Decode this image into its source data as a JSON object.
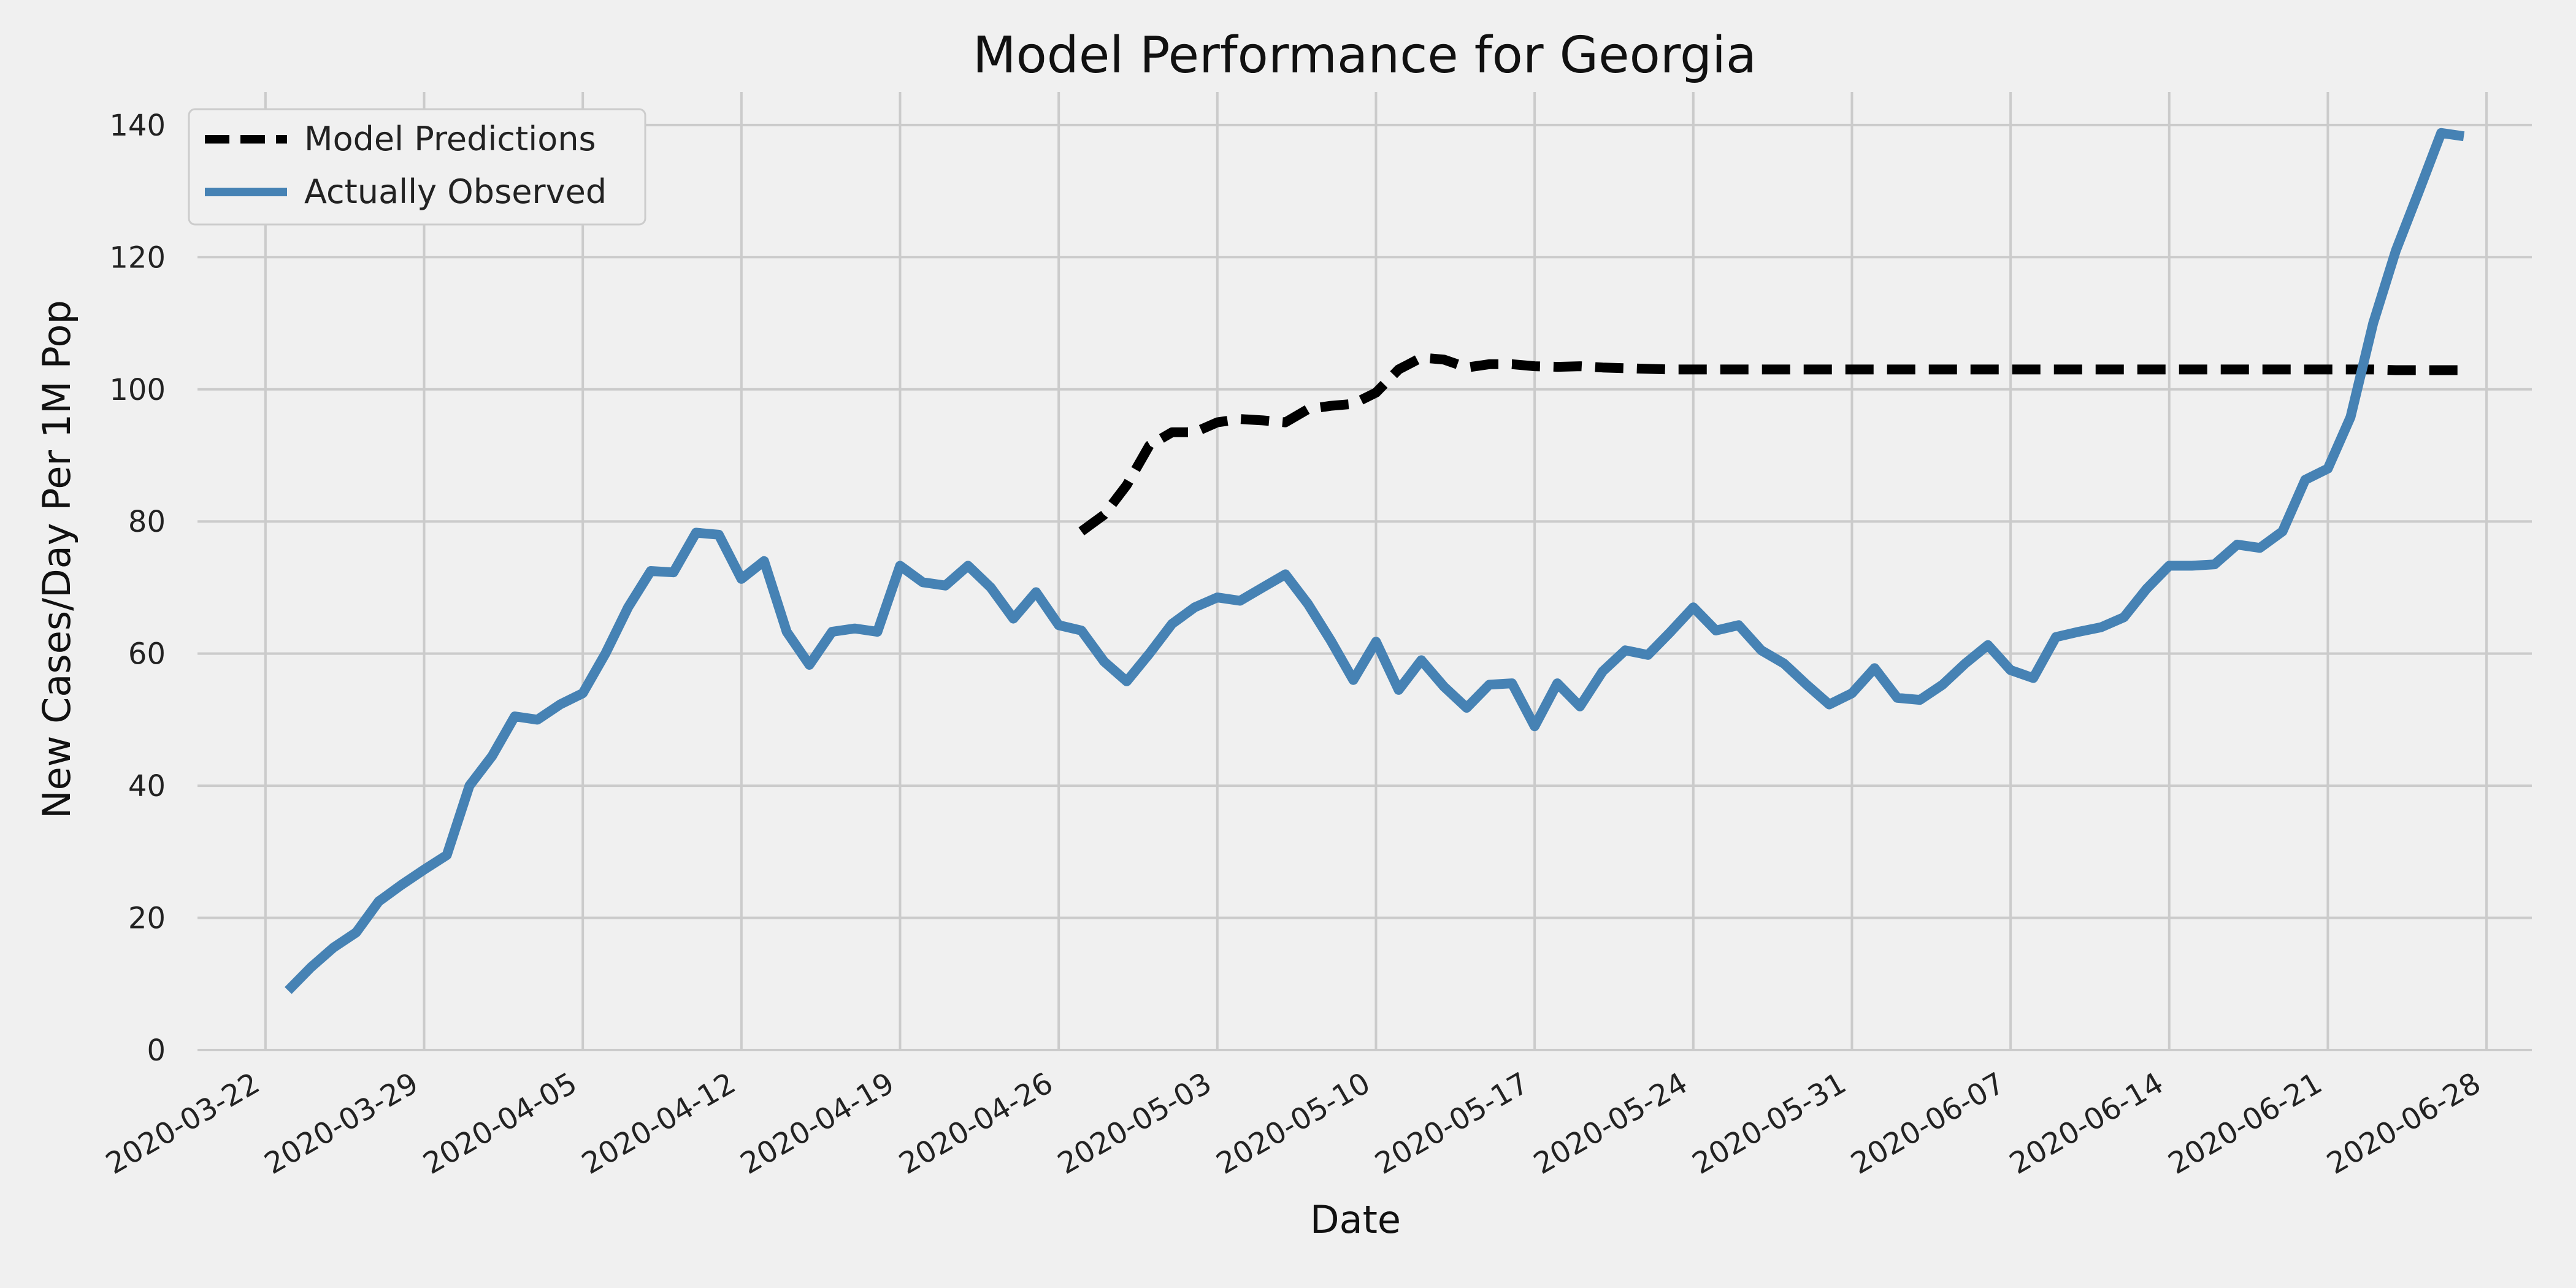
{
  "chart_data": {
    "type": "line",
    "title": "Model Performance for Georgia",
    "xlabel": "Date",
    "ylabel": "New Cases/Day Per 1M Pop",
    "ylim": [
      0,
      145
    ],
    "yticks": [
      0,
      20,
      40,
      60,
      80,
      100,
      120,
      140
    ],
    "xlim": [
      "2020-03-19",
      "2020-06-30"
    ],
    "xticks": [
      "2020-03-22",
      "2020-03-29",
      "2020-04-05",
      "2020-04-12",
      "2020-04-19",
      "2020-04-26",
      "2020-05-03",
      "2020-05-10",
      "2020-05-17",
      "2020-05-24",
      "2020-05-31",
      "2020-06-07",
      "2020-06-14",
      "2020-06-21",
      "2020-06-28"
    ],
    "grid": true,
    "legend_position": "top-left",
    "series": [
      {
        "name": "Model Predictions",
        "color": "#000000",
        "style": "dashed",
        "x": [
          "2020-04-27",
          "2020-04-28",
          "2020-04-29",
          "2020-04-30",
          "2020-05-01",
          "2020-05-02",
          "2020-05-03",
          "2020-05-04",
          "2020-05-05",
          "2020-05-06",
          "2020-05-07",
          "2020-05-08",
          "2020-05-09",
          "2020-05-10",
          "2020-05-11",
          "2020-05-12",
          "2020-05-13",
          "2020-05-14",
          "2020-05-15",
          "2020-05-16",
          "2020-05-17",
          "2020-05-18",
          "2020-05-19",
          "2020-05-20",
          "2020-05-21",
          "2020-05-22",
          "2020-05-23",
          "2020-05-24",
          "2020-05-25",
          "2020-05-26",
          "2020-05-27",
          "2020-05-28",
          "2020-05-29",
          "2020-05-30",
          "2020-05-31",
          "2020-06-01",
          "2020-06-02",
          "2020-06-03",
          "2020-06-04",
          "2020-06-05",
          "2020-06-06",
          "2020-06-07",
          "2020-06-08",
          "2020-06-09",
          "2020-06-10",
          "2020-06-11",
          "2020-06-12",
          "2020-06-13",
          "2020-06-14",
          "2020-06-15",
          "2020-06-16",
          "2020-06-17",
          "2020-06-18",
          "2020-06-19",
          "2020-06-20",
          "2020-06-21",
          "2020-06-22",
          "2020-06-23",
          "2020-06-24",
          "2020-06-25",
          "2020-06-26",
          "2020-06-27"
        ],
        "values": [
          78.5,
          81.0,
          85.5,
          91.5,
          93.5,
          93.5,
          95.0,
          95.5,
          95.3,
          95.0,
          97.0,
          97.5,
          97.8,
          99.5,
          103.0,
          104.8,
          104.5,
          103.3,
          103.8,
          103.8,
          103.5,
          103.4,
          103.5,
          103.3,
          103.2,
          103.1,
          103.0,
          103.0,
          103.0,
          103.0,
          103.0,
          103.0,
          103.0,
          103.0,
          103.0,
          103.0,
          103.0,
          103.0,
          103.0,
          103.0,
          103.0,
          103.0,
          103.0,
          103.0,
          103.0,
          103.0,
          103.0,
          103.0,
          103.0,
          103.0,
          103.0,
          103.0,
          103.0,
          103.0,
          103.0,
          103.0,
          103.0,
          103.0,
          102.9,
          102.9,
          102.9,
          102.9
        ]
      },
      {
        "name": "Actually Observed",
        "color": "#4682b4",
        "style": "solid",
        "x": [
          "2020-03-23",
          "2020-03-24",
          "2020-03-25",
          "2020-03-26",
          "2020-03-27",
          "2020-03-28",
          "2020-03-29",
          "2020-03-30",
          "2020-03-31",
          "2020-04-01",
          "2020-04-02",
          "2020-04-03",
          "2020-04-04",
          "2020-04-05",
          "2020-04-06",
          "2020-04-07",
          "2020-04-08",
          "2020-04-09",
          "2020-04-10",
          "2020-04-11",
          "2020-04-12",
          "2020-04-13",
          "2020-04-14",
          "2020-04-15",
          "2020-04-16",
          "2020-04-17",
          "2020-04-18",
          "2020-04-19",
          "2020-04-20",
          "2020-04-21",
          "2020-04-22",
          "2020-04-23",
          "2020-04-24",
          "2020-04-25",
          "2020-04-26",
          "2020-04-27",
          "2020-04-28",
          "2020-04-29",
          "2020-04-30",
          "2020-05-01",
          "2020-05-02",
          "2020-05-03",
          "2020-05-04",
          "2020-05-05",
          "2020-05-06",
          "2020-05-07",
          "2020-05-08",
          "2020-05-09",
          "2020-05-10",
          "2020-05-11",
          "2020-05-12",
          "2020-05-13",
          "2020-05-14",
          "2020-05-15",
          "2020-05-16",
          "2020-05-17",
          "2020-05-18",
          "2020-05-19",
          "2020-05-20",
          "2020-05-21",
          "2020-05-22",
          "2020-05-23",
          "2020-05-24",
          "2020-05-25",
          "2020-05-26",
          "2020-05-27",
          "2020-05-28",
          "2020-05-29",
          "2020-05-30",
          "2020-05-31",
          "2020-06-01",
          "2020-06-02",
          "2020-06-03",
          "2020-06-04",
          "2020-06-05",
          "2020-06-06",
          "2020-06-07",
          "2020-06-08",
          "2020-06-09",
          "2020-06-10",
          "2020-06-11",
          "2020-06-12",
          "2020-06-13",
          "2020-06-14",
          "2020-06-15",
          "2020-06-16",
          "2020-06-17",
          "2020-06-18",
          "2020-06-19",
          "2020-06-20",
          "2020-06-21",
          "2020-06-22",
          "2020-06-23",
          "2020-06-24",
          "2020-06-25",
          "2020-06-26",
          "2020-06-27"
        ],
        "values": [
          9.0,
          12.5,
          15.5,
          17.8,
          22.5,
          25.0,
          27.3,
          29.5,
          40.0,
          44.5,
          50.5,
          50.0,
          52.3,
          54.0,
          60.0,
          67.0,
          72.5,
          72.3,
          78.3,
          78.0,
          71.3,
          74.0,
          63.3,
          58.3,
          63.3,
          63.8,
          63.3,
          73.3,
          70.8,
          70.3,
          73.3,
          70.0,
          65.3,
          69.3,
          64.3,
          63.5,
          58.8,
          55.8,
          60.0,
          64.5,
          67.0,
          68.5,
          68.0,
          70.0,
          72.0,
          67.5,
          62.0,
          56.0,
          61.8,
          54.5,
          59.0,
          55.0,
          51.8,
          55.3,
          55.5,
          49.0,
          55.5,
          52.0,
          57.3,
          60.5,
          59.8,
          63.3,
          67.0,
          63.5,
          64.3,
          60.5,
          58.5,
          55.3,
          52.3,
          54.0,
          57.8,
          53.3,
          53.0,
          55.3,
          58.5,
          61.3,
          57.5,
          56.3,
          62.5,
          63.3,
          64.0,
          65.5,
          69.8,
          73.3,
          73.3,
          73.5,
          76.5,
          76.0,
          78.5,
          86.3,
          88.0,
          95.8,
          110.0,
          121.0,
          129.8,
          138.8,
          138.3
        ]
      }
    ]
  }
}
